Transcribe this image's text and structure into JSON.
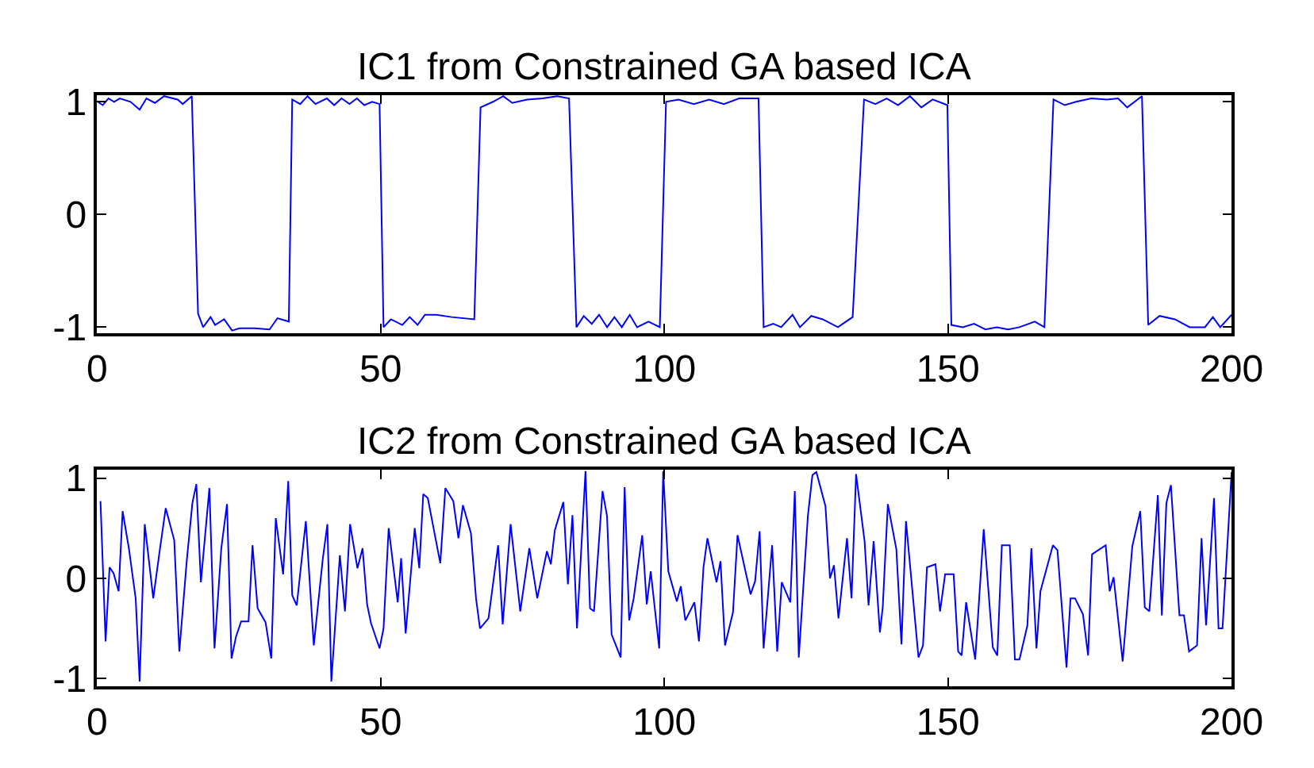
{
  "chart_data": [
    {
      "type": "line",
      "title": "IC1 from Constrained GA based ICA",
      "color": "#0000ff",
      "xlim": [
        0,
        200
      ],
      "ylim": [
        -1.05,
        1.06
      ],
      "xticks": [
        0,
        50,
        100,
        150,
        200
      ],
      "yticks": [
        -1,
        0,
        1
      ],
      "x": [
        0.1,
        1,
        2,
        3,
        4,
        5.9,
        7.5,
        8.7,
        10.2,
        11.8,
        14.2,
        15.1,
        16.7,
        17.8,
        18.7,
        20,
        20.8,
        22.4,
        23.8,
        25.1,
        27.8,
        30.4,
        31.8,
        33.8,
        34.4,
        35.8,
        37.1,
        38.5,
        40.5,
        41.8,
        43.1,
        44.5,
        45.8,
        47.1,
        48.5,
        49.8,
        50.5,
        51.8,
        53.8,
        55.1,
        56.5,
        57.8,
        59.8,
        62.5,
        66.5,
        67.6,
        69.8,
        71.6,
        73.2,
        75.8,
        78.5,
        81.1,
        83.2,
        84.5,
        85.8,
        87.2,
        88.5,
        89.9,
        91.2,
        92.5,
        93.9,
        95.2,
        97.2,
        99.2,
        100.3,
        102.5,
        105.2,
        107.9,
        110.5,
        113.2,
        116.6,
        117.5,
        119.2,
        120.6,
        122.6,
        123.9,
        125.9,
        127.9,
        130.6,
        133.2,
        135.2,
        137.2,
        139.2,
        141.2,
        143.3,
        145.3,
        147.3,
        149.9,
        150.6,
        152.6,
        154.6,
        156.6,
        158.6,
        160.6,
        162.6,
        165.3,
        167,
        168.6,
        170.6,
        172.6,
        175.3,
        178,
        180,
        181.6,
        184.2,
        185.3,
        187.3,
        190,
        192.6,
        195.3,
        196.7,
        198,
        200
      ],
      "values": [
        1,
        0.97,
        1.03,
        1,
        1.03,
        1,
        0.93,
        1.03,
        0.99,
        1.05,
        1.02,
        0.98,
        1.05,
        -0.88,
        -1,
        -0.91,
        -0.98,
        -0.93,
        -1.03,
        -1.01,
        -1.01,
        -1.02,
        -0.92,
        -0.95,
        1.02,
        0.98,
        1.05,
        0.98,
        1.03,
        0.97,
        1.03,
        0.98,
        1.03,
        0.97,
        1,
        0.98,
        -1,
        -0.93,
        -0.98,
        -0.91,
        -0.98,
        -0.89,
        -0.89,
        -0.91,
        -0.93,
        0.95,
        1,
        1.05,
        0.99,
        1.02,
        1.03,
        1.05,
        1.03,
        -1,
        -0.9,
        -0.97,
        -0.89,
        -1,
        -0.91,
        -1,
        -0.89,
        -1,
        -0.95,
        -1,
        1,
        1.02,
        0.98,
        1.02,
        0.98,
        1.03,
        1.03,
        -1,
        -0.97,
        -1,
        -0.89,
        -1,
        -0.9,
        -0.93,
        -1,
        -0.91,
        1.02,
        0.98,
        1.03,
        0.97,
        1.05,
        0.95,
        1.02,
        0.97,
        -0.98,
        -1,
        -0.97,
        -1.02,
        -1,
        -1.02,
        -1,
        -0.95,
        -1,
        1.02,
        0.97,
        1,
        1.03,
        1.02,
        1.03,
        0.95,
        1.05,
        -0.98,
        -0.9,
        -0.93,
        -1,
        -1,
        -0.91,
        -1,
        -0.89
      ]
    },
    {
      "type": "line",
      "title": "IC2 from Constrained GA based ICA",
      "color": "#0000ff",
      "xlim": [
        0,
        200
      ],
      "ylim": [
        -1.08,
        1.08
      ],
      "xticks": [
        0,
        50,
        100,
        150,
        200
      ],
      "yticks": [
        -1,
        0,
        1
      ],
      "x": [
        0.6,
        1.5,
        2.2,
        2.9,
        3.8,
        4.5,
        5.6,
        6.8,
        7.5,
        8.4,
        9.9,
        11.1,
        12.1,
        13.6,
        14.5,
        15.8,
        16.8,
        17.5,
        18.3,
        19.8,
        20.7,
        21.9,
        22.9,
        23.7,
        24.5,
        25.4,
        26.7,
        27.4,
        28.3,
        29.7,
        30.7,
        31.5,
        32.8,
        33.7,
        34.4,
        35.2,
        36.8,
        38.2,
        39.8,
        40.6,
        41.3,
        42.8,
        43.7,
        44.6,
        45.9,
        46.8,
        47.6,
        48.3,
        49.8,
        50.5,
        51.4,
        53,
        53.6,
        54.4,
        56,
        56.8,
        57.5,
        58.3,
        60.5,
        61.4,
        62.8,
        63.7,
        64.5,
        65.9,
        66.8,
        67.5,
        69,
        70.7,
        71.5,
        72.9,
        74.6,
        76.2,
        77.6,
        79.3,
        80,
        80.7,
        82.2,
        83,
        83.8,
        84.6,
        86.1,
        86.9,
        87.6,
        89.1,
        89.9,
        90.7,
        92.3,
        93,
        93.8,
        94.6,
        96.1,
        96.9,
        97.6,
        99.1,
        99.8,
        100.7,
        102.2,
        102.9,
        103.7,
        105.3,
        106.1,
        106.9,
        107.6,
        109.2,
        109.9,
        110.7,
        112.1,
        112.9,
        115.2,
        116,
        116.8,
        117.5,
        119,
        119.9,
        120.7,
        122.2,
        123,
        123.7,
        125.3,
        126.1,
        126.8,
        128.4,
        129.2,
        129.9,
        130.7,
        132.2,
        133,
        133.8,
        135.3,
        136,
        136.9,
        138,
        138.5,
        139.4,
        140.9,
        141.8,
        142.6,
        144.8,
        145.6,
        146.3,
        147.8,
        148.6,
        149.5,
        151,
        151.8,
        152.4,
        153.2,
        154.8,
        156.3,
        157.9,
        158.7,
        159.5,
        160.9,
        161.8,
        162.6,
        164,
        164.7,
        165.6,
        166.3,
        168.5,
        169.3,
        170.9,
        171.6,
        172.4,
        173.8,
        174.7,
        175.4,
        177.8,
        178.5,
        179.2,
        180.8,
        182.5,
        183.9,
        184.7,
        185.5,
        187,
        187.7,
        188.5,
        189.3,
        190.8,
        191.6,
        192.5,
        193.9,
        194.7,
        195.5,
        196.9,
        197.7,
        198.4,
        200
      ],
      "values": [
        0.77,
        -0.63,
        0.11,
        0.05,
        -0.13,
        0.67,
        0.3,
        -0.2,
        -1.03,
        0.54,
        -0.2,
        0.3,
        0.7,
        0.38,
        -0.73,
        0.17,
        0.75,
        0.94,
        -0.04,
        0.9,
        -0.7,
        0.3,
        0.74,
        -0.8,
        -0.58,
        -0.43,
        -0.43,
        0.33,
        -0.3,
        -0.44,
        -0.8,
        0.6,
        0.04,
        0.97,
        -0.17,
        -0.27,
        0.57,
        -0.67,
        0.2,
        0.54,
        -1.03,
        0.23,
        -0.33,
        0.54,
        0.1,
        0.3,
        -0.26,
        -0.45,
        -0.7,
        -0.5,
        0.5,
        -0.24,
        0.2,
        -0.55,
        0.5,
        0.1,
        0.84,
        0.8,
        0.15,
        0.9,
        0.77,
        0.4,
        0.73,
        0.45,
        -0.2,
        -0.5,
        -0.4,
        0.33,
        -0.46,
        0.54,
        -0.33,
        0.3,
        -0.2,
        0.27,
        0.14,
        0.48,
        0.76,
        -0.06,
        0.63,
        -0.5,
        1.07,
        -0.3,
        -0.33,
        0.87,
        0.62,
        -0.56,
        -0.79,
        0.91,
        -0.42,
        -0.2,
        0.43,
        -0.26,
        0.07,
        -0.7,
        1.07,
        0.07,
        -0.23,
        -0.08,
        -0.42,
        -0.24,
        -0.63,
        0.11,
        0.4,
        -0.04,
        0.17,
        -0.67,
        -0.34,
        0.43,
        -0.16,
        -0.03,
        0.47,
        -0.7,
        0.33,
        -0.73,
        -0.04,
        -0.24,
        0.87,
        -0.79,
        0.62,
        1.03,
        1.06,
        0.72,
        0,
        0.13,
        -0.4,
        0.4,
        -0.2,
        1.04,
        0.37,
        -0.27,
        0.37,
        -0.54,
        -0.29,
        0.74,
        0.29,
        -0.66,
        0.57,
        -0.79,
        -0.67,
        0.11,
        0.14,
        -0.33,
        0.04,
        0.04,
        -0.73,
        -0.77,
        -0.24,
        -0.81,
        0.49,
        -0.69,
        -0.77,
        0.33,
        0.33,
        -0.81,
        -0.81,
        -0.47,
        0.3,
        -0.7,
        -0.13,
        0.33,
        0.28,
        -0.89,
        -0.2,
        -0.2,
        -0.36,
        -0.77,
        0.24,
        0.33,
        -0.13,
        0.01,
        -0.83,
        0.32,
        0.67,
        -0.29,
        -0.33,
        0.83,
        -0.37,
        0.75,
        0.93,
        -0.37,
        -0.37,
        -0.73,
        -0.67,
        0.4,
        -0.47,
        0.8,
        -0.5,
        -0.5,
        1.06
      ]
    }
  ]
}
